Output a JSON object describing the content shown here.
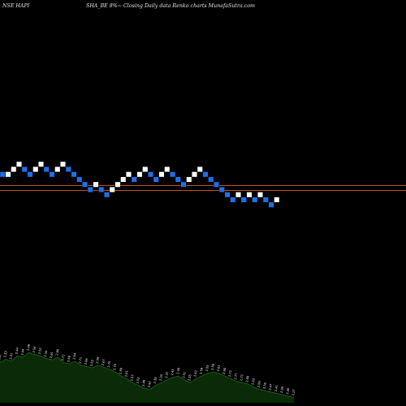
{
  "header": {
    "symbol": "NSE HAPI",
    "subtitle": "SHA_BE 8%~  Closing Daily data  Renko  charts MunafaSutra.com"
  },
  "colors": {
    "background": "#000000",
    "brick_up": "#ffffff",
    "brick_down": "#1e6fe8",
    "reference_line": "#c0521b",
    "volume_fill": "#0b2a08",
    "volume_line": "#156b12",
    "volume_label": "#ffffff"
  },
  "chart_data": {
    "type": "renko",
    "brick_levels": [
      7,
      7,
      8,
      9,
      8,
      7,
      8,
      9,
      8,
      7,
      8,
      9,
      8,
      7,
      6,
      5,
      4,
      5,
      4,
      3,
      4,
      5,
      6,
      7,
      6,
      7,
      8,
      7,
      6,
      7,
      8,
      7,
      6,
      5,
      6,
      7,
      8,
      7,
      6,
      5,
      4,
      3,
      2,
      3,
      2,
      3,
      2,
      3,
      2,
      1,
      2
    ],
    "brick_directions": [
      "down",
      "up",
      "up",
      "up",
      "down",
      "down",
      "up",
      "up",
      "down",
      "down",
      "up",
      "up",
      "down",
      "down",
      "down",
      "down",
      "down",
      "up",
      "down",
      "down",
      "up",
      "up",
      "up",
      "up",
      "down",
      "up",
      "up",
      "down",
      "down",
      "up",
      "up",
      "down",
      "down",
      "down",
      "up",
      "up",
      "up",
      "down",
      "down",
      "down",
      "down",
      "down",
      "down",
      "up",
      "down",
      "up",
      "down",
      "up",
      "down",
      "down",
      "up"
    ],
    "reference_lines": [
      "upper",
      "lower"
    ],
    "volume_labels": [
      "2.31",
      "2.33",
      "2.31",
      "2.44",
      "2.44",
      "2.49",
      "2.56",
      "2.52",
      "2.54",
      "2.61",
      "2.66",
      "2.72",
      "2.69",
      "2.64",
      "2.71",
      "2.66",
      "2.62",
      "2.59",
      "2.67",
      "2.75",
      "2.70",
      "2.69",
      "2.61",
      "2.57",
      "2.52",
      "2.49",
      "2.42",
      "2.38",
      "2.33",
      "2.37",
      "2.43",
      "2.48",
      "2.51",
      "2.55",
      "2.62",
      "2.59",
      "2.55",
      "2.58",
      "2.61",
      "2.66",
      "2.72",
      "2.77",
      "2.72",
      "2.68",
      "2.63",
      "2.59",
      "2.55",
      "2.47",
      "2.41",
      "2.36",
      "2.30",
      "2.27"
    ],
    "volume_values": [
      60,
      65,
      62,
      70,
      68,
      75,
      72,
      70,
      66,
      64,
      68,
      60,
      58,
      62,
      56,
      54,
      52,
      56,
      53,
      50,
      46,
      40,
      36,
      30,
      26,
      22,
      20,
      26,
      30,
      34,
      38,
      40,
      34,
      30,
      36,
      40,
      44,
      46,
      44,
      40,
      36,
      32,
      30,
      28,
      24,
      20,
      18,
      16,
      14,
      12,
      10,
      8
    ]
  }
}
